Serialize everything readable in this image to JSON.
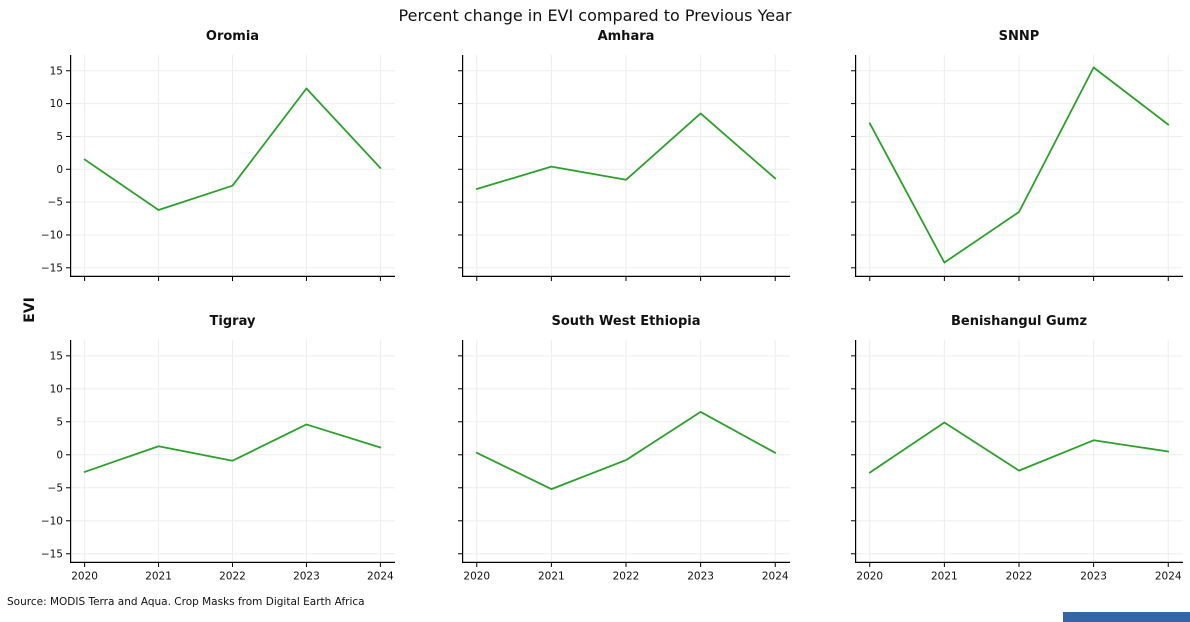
{
  "figure": {
    "title": "Percent change in EVI compared to Previous Year",
    "ylabel": "EVI",
    "source": "Source: MODIS Terra and Aqua. Crop Masks from Digital Earth Africa",
    "line_color": "#2ca02c",
    "accent_bar_color": "#3465a4",
    "ylim": [
      -16.4,
      17.4
    ],
    "y_ticks": [
      -15,
      -10,
      -5,
      0,
      5,
      10,
      15
    ],
    "x_ticks": [
      2020,
      2021,
      2022,
      2023,
      2024
    ]
  },
  "chart_data": [
    {
      "type": "line",
      "title": "Oromia",
      "x": [
        2020,
        2021,
        2022,
        2023,
        2024
      ],
      "values": [
        1.5,
        -6.2,
        -2.5,
        12.3,
        0.2
      ],
      "xlabel": "",
      "ylabel": "EVI",
      "ylim": [
        -16.4,
        17.4
      ],
      "grid": true,
      "legend": "none"
    },
    {
      "type": "line",
      "title": "Amhara",
      "x": [
        2020,
        2021,
        2022,
        2023,
        2024
      ],
      "values": [
        -3.0,
        0.4,
        -1.6,
        8.5,
        -1.4
      ],
      "xlabel": "",
      "ylabel": "EVI",
      "ylim": [
        -16.4,
        17.4
      ],
      "grid": true,
      "legend": "none"
    },
    {
      "type": "line",
      "title": "SNNP",
      "x": [
        2020,
        2021,
        2022,
        2023,
        2024
      ],
      "values": [
        7.0,
        -14.2,
        -6.5,
        15.5,
        6.8
      ],
      "xlabel": "",
      "ylabel": "EVI",
      "ylim": [
        -16.4,
        17.4
      ],
      "grid": true,
      "legend": "none"
    },
    {
      "type": "line",
      "title": "Tigray",
      "x": [
        2020,
        2021,
        2022,
        2023,
        2024
      ],
      "values": [
        -2.6,
        1.3,
        -0.9,
        4.6,
        1.1
      ],
      "xlabel": "",
      "ylabel": "EVI",
      "ylim": [
        -16.4,
        17.4
      ],
      "grid": true,
      "legend": "none"
    },
    {
      "type": "line",
      "title": "South West Ethiopia",
      "x": [
        2020,
        2021,
        2022,
        2023,
        2024
      ],
      "values": [
        0.3,
        -5.2,
        -0.8,
        6.5,
        0.3
      ],
      "xlabel": "",
      "ylabel": "EVI",
      "ylim": [
        -16.4,
        17.4
      ],
      "grid": true,
      "legend": "none"
    },
    {
      "type": "line",
      "title": "Benishangul Gumz",
      "x": [
        2020,
        2021,
        2022,
        2023,
        2024
      ],
      "values": [
        -2.7,
        4.9,
        -2.4,
        2.2,
        0.5
      ],
      "xlabel": "",
      "ylabel": "EVI",
      "ylim": [
        -16.4,
        17.4
      ],
      "grid": true,
      "legend": "none"
    }
  ]
}
